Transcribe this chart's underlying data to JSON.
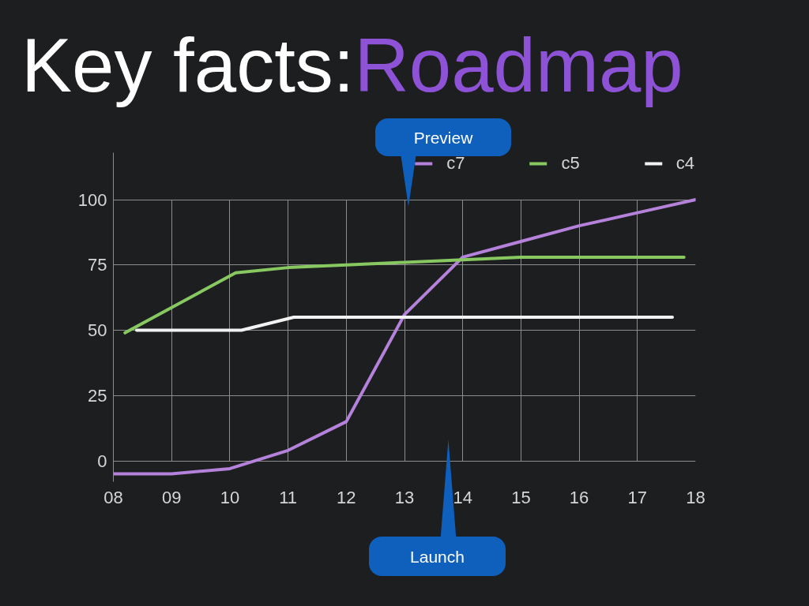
{
  "chart_data": {
    "type": "line",
    "title": "Key facts:Roadmap",
    "x": [
      8,
      9,
      10,
      11,
      12,
      13,
      14,
      15,
      16,
      17,
      18
    ],
    "series": [
      {
        "name": "c7",
        "color": "#b482da",
        "values": [
          -5,
          -5,
          -3,
          4,
          15,
          56,
          78,
          84,
          90,
          95,
          100
        ]
      },
      {
        "name": "c5",
        "color": "#88c860",
        "x": [
          8.2,
          10.1,
          11,
          12,
          13,
          14,
          15,
          16,
          17,
          17.8
        ],
        "values": [
          49,
          72,
          74,
          75,
          76,
          77,
          78,
          78,
          78,
          78
        ]
      },
      {
        "name": "c4",
        "color": "#f2f2f2",
        "x": [
          8.4,
          10.2,
          11.1,
          17.6
        ],
        "values": [
          50,
          50,
          55,
          55
        ]
      }
    ],
    "xlim": [
      8,
      18
    ],
    "ylim": [
      -8,
      118
    ],
    "xticks": [
      {
        "value": 8,
        "label": "08"
      },
      {
        "value": 9,
        "label": "09"
      },
      {
        "value": 10,
        "label": "10"
      },
      {
        "value": 11,
        "label": "11"
      },
      {
        "value": 12,
        "label": "12"
      },
      {
        "value": 13,
        "label": "13"
      },
      {
        "value": 14,
        "label": "14"
      },
      {
        "value": 15,
        "label": "15"
      },
      {
        "value": 16,
        "label": "16"
      },
      {
        "value": 17,
        "label": "17"
      },
      {
        "value": 18,
        "label": "18"
      }
    ],
    "yticks": [
      0,
      25,
      50,
      75,
      100
    ],
    "annotations": [
      "Preview",
      "Launch"
    ],
    "grid": true,
    "legend": "top right",
    "line_style": "solid"
  }
}
